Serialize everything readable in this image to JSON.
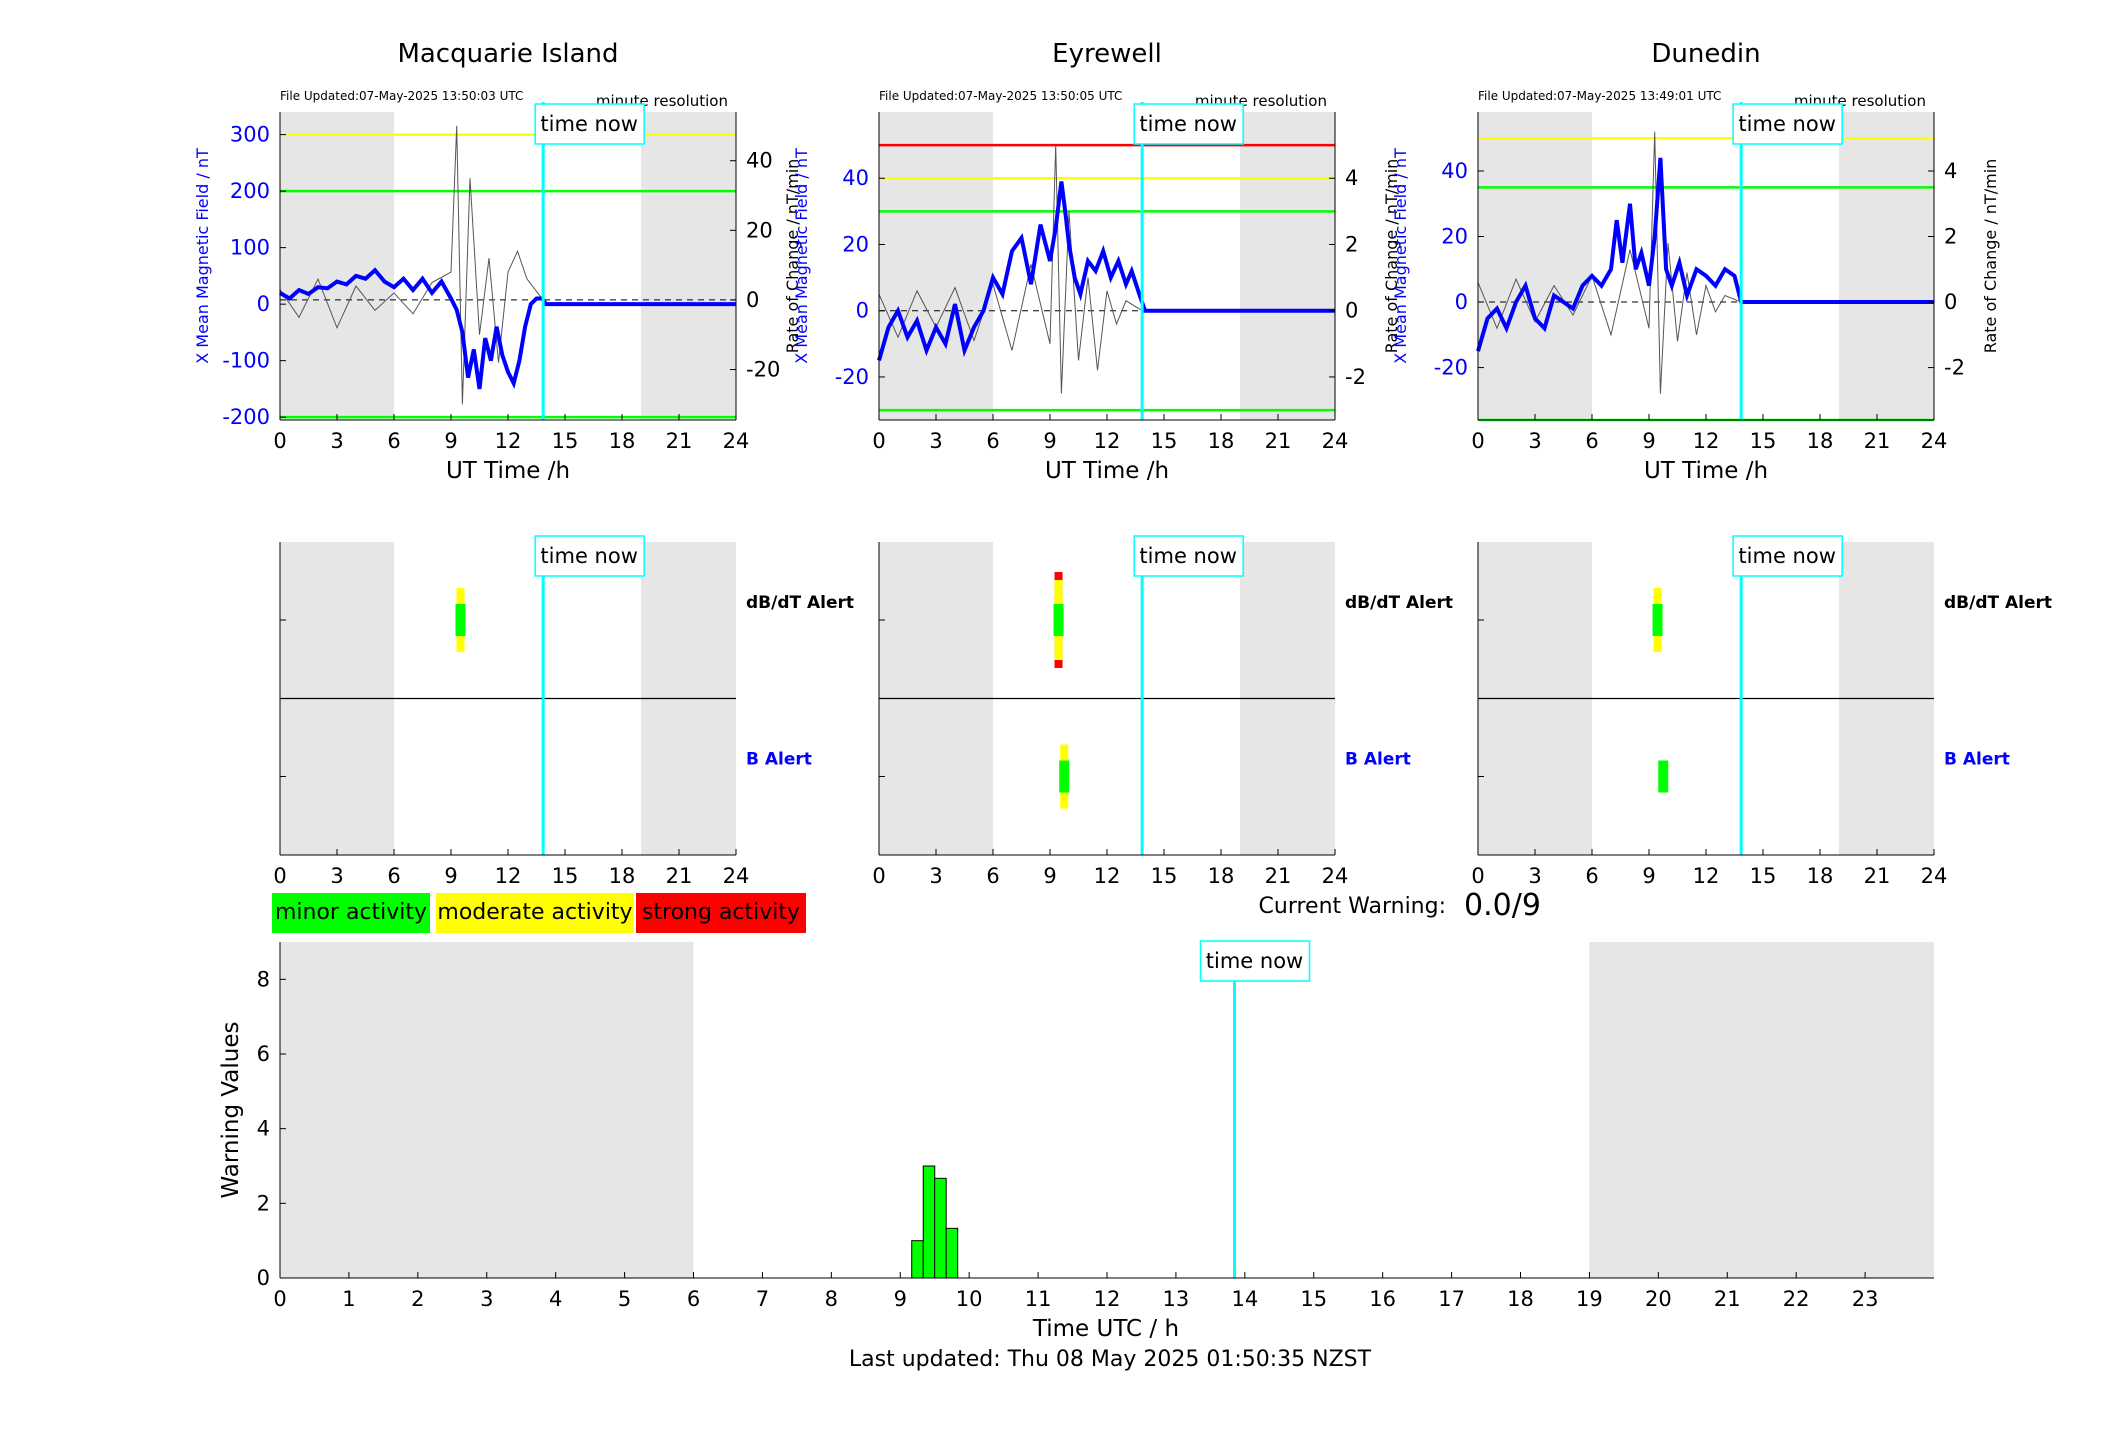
{
  "figure": {
    "last_updated": "Last updated: Thu 08 May 2025 01:50:35 NZST",
    "current_warning_label": "Current Warning:",
    "current_warning_value": "0.0/9",
    "time_now_label": "time now"
  },
  "legend": [
    {
      "label": "minor activity",
      "color": "#00ff00"
    },
    {
      "label": "moderate activity",
      "color": "#ffff00"
    },
    {
      "label": "strong activity",
      "color": "#ff0000"
    }
  ],
  "colors": {
    "field_line": "#0000ff",
    "rate_line": "#555555",
    "now_line": "#00ffff",
    "night_shade": "#e6e6e6",
    "minor": "#00ff00",
    "moderate": "#ffff00",
    "strong": "#ff0000"
  },
  "alert_labels": {
    "dbdt": "dB/dT Alert",
    "b": "B Alert"
  },
  "chart_data": [
    {
      "type": "line",
      "title": "Macquarie Island",
      "file_updated": "File Updated:07-May-2025 13:50:03 UTC",
      "resolution": "minute resolution",
      "xlabel": "UT Time /h",
      "ylabel_left": "X Mean Magnetic Field / nT",
      "ylabel_right": "Rate of Change / nT/min",
      "xlim": [
        0,
        24
      ],
      "xticks": [
        0,
        3,
        6,
        9,
        12,
        15,
        18,
        21,
        24
      ],
      "ylim_left": [
        -205,
        340
      ],
      "yticks_left": [
        -200,
        -100,
        0,
        100,
        200,
        300
      ],
      "ylim_right": [
        -34.5,
        54
      ],
      "yticks_right": [
        -20,
        0,
        20,
        40
      ],
      "night_shading_hours": [
        [
          0,
          6
        ],
        [
          19,
          24
        ]
      ],
      "time_now_hour": 13.85,
      "threshold_lines": [
        {
          "value": 300,
          "color": "yellow"
        },
        {
          "value": 200,
          "color": "green"
        },
        {
          "value": -200,
          "color": "green"
        }
      ],
      "field_series": {
        "name": "X Mean Magnetic Field",
        "x": [
          0,
          0.5,
          1,
          1.5,
          2,
          2.5,
          3,
          3.5,
          4,
          4.5,
          5,
          5.5,
          6,
          6.5,
          7,
          7.5,
          8,
          8.5,
          9,
          9.3,
          9.6,
          9.9,
          10.2,
          10.5,
          10.8,
          11.1,
          11.4,
          11.7,
          12,
          12.3,
          12.6,
          12.9,
          13.2,
          13.5,
          13.8,
          14,
          24
        ],
        "y": [
          20,
          10,
          25,
          18,
          30,
          28,
          40,
          35,
          50,
          45,
          60,
          40,
          30,
          45,
          25,
          45,
          20,
          40,
          10,
          -10,
          -50,
          -130,
          -80,
          -150,
          -60,
          -100,
          -40,
          -90,
          -120,
          -140,
          -100,
          -40,
          0,
          10,
          10,
          0,
          0
        ]
      },
      "rate_series": {
        "name": "Rate of Change",
        "x": [
          0,
          1,
          2,
          3,
          4,
          5,
          6,
          7,
          8,
          9,
          9.3,
          9.6,
          10,
          10.5,
          11,
          11.5,
          12,
          12.5,
          13,
          13.85
        ],
        "y": [
          3,
          -5,
          6,
          -8,
          4,
          -3,
          2,
          -4,
          5,
          8,
          50,
          -30,
          35,
          -10,
          12,
          -18,
          8,
          14,
          6,
          0
        ]
      },
      "alerts": {
        "dbdt": [
          {
            "start": 9.2,
            "end": 9.8,
            "level": "moderate"
          },
          {
            "start": 9.3,
            "end": 9.7,
            "level": "minor"
          }
        ],
        "b": []
      }
    },
    {
      "type": "line",
      "title": "Eyrewell",
      "file_updated": "File Updated:07-May-2025 13:50:05 UTC",
      "resolution": "minute resolution",
      "xlabel": "UT Time /h",
      "ylabel_left": "X Mean Magnetic Field / nT",
      "ylabel_right": "Rate of Change / nT/min",
      "xlim": [
        0,
        24
      ],
      "xticks": [
        0,
        3,
        6,
        9,
        12,
        15,
        18,
        21,
        24
      ],
      "ylim_left": [
        -33,
        60
      ],
      "yticks_left": [
        -20,
        0,
        20,
        40
      ],
      "ylim_right": [
        -3.3,
        6
      ],
      "yticks_right": [
        -2,
        0,
        2,
        4
      ],
      "night_shading_hours": [
        [
          0,
          6
        ],
        [
          19,
          24
        ]
      ],
      "time_now_hour": 13.85,
      "threshold_lines": [
        {
          "value": 50,
          "color": "red"
        },
        {
          "value": 40,
          "color": "yellow"
        },
        {
          "value": 30,
          "color": "green"
        },
        {
          "value": -30,
          "color": "green"
        }
      ],
      "field_series": {
        "name": "X Mean Magnetic Field",
        "x": [
          0,
          0.5,
          1,
          1.5,
          2,
          2.5,
          3,
          3.5,
          4,
          4.5,
          5,
          5.5,
          6,
          6.5,
          7,
          7.5,
          8,
          8.5,
          9,
          9.3,
          9.6,
          9.8,
          10,
          10.3,
          10.6,
          11,
          11.4,
          11.8,
          12.2,
          12.6,
          13,
          13.3,
          13.7,
          14,
          24
        ],
        "y": [
          -15,
          -5,
          0,
          -8,
          -3,
          -12,
          -5,
          -10,
          2,
          -12,
          -5,
          0,
          10,
          5,
          18,
          22,
          8,
          26,
          15,
          25,
          39,
          30,
          20,
          10,
          5,
          15,
          12,
          18,
          10,
          15,
          8,
          12,
          5,
          0,
          0
        ]
      },
      "rate_series": {
        "name": "Rate of Change",
        "x": [
          0,
          1,
          2,
          3,
          4,
          5,
          6,
          7,
          8,
          9,
          9.3,
          9.6,
          10,
          10.5,
          11,
          11.5,
          12,
          12.5,
          13,
          13.85
        ],
        "y": [
          0.5,
          -0.8,
          0.6,
          -0.5,
          0.7,
          -0.9,
          0.8,
          -1.2,
          1.4,
          -1.0,
          5.0,
          -2.5,
          3.0,
          -1.5,
          1.0,
          -1.8,
          0.6,
          -0.4,
          0.3,
          0
        ]
      },
      "alerts": {
        "dbdt": [
          {
            "start": 9.2,
            "end": 9.7,
            "level": "strong"
          },
          {
            "start": 9.2,
            "end": 9.7,
            "level": "moderate"
          },
          {
            "start": 9.25,
            "end": 9.65,
            "level": "minor"
          }
        ],
        "b": [
          {
            "start": 9.5,
            "end": 10.0,
            "level": "moderate"
          },
          {
            "start": 9.55,
            "end": 9.95,
            "level": "minor"
          }
        ]
      }
    },
    {
      "type": "line",
      "title": "Dunedin",
      "file_updated": "File Updated:07-May-2025 13:49:01 UTC",
      "resolution": "minute resolution",
      "xlabel": "UT Time /h",
      "ylabel_left": "X Mean Magnetic Field / nT",
      "ylabel_right": "Rate of Change / nT/min",
      "xlim": [
        0,
        24
      ],
      "xticks": [
        0,
        3,
        6,
        9,
        12,
        15,
        18,
        21,
        24
      ],
      "ylim_left": [
        -36,
        58
      ],
      "yticks_left": [
        -20,
        0,
        20,
        40
      ],
      "ylim_right": [
        -3.6,
        5.8
      ],
      "yticks_right": [
        -2,
        0,
        2,
        4
      ],
      "night_shading_hours": [
        [
          0,
          6
        ],
        [
          19,
          24
        ]
      ],
      "time_now_hour": 13.85,
      "threshold_lines": [
        {
          "value": 50,
          "color": "yellow"
        },
        {
          "value": 35,
          "color": "green"
        },
        {
          "value": -36,
          "color": "green"
        }
      ],
      "field_series": {
        "name": "X Mean Magnetic Field",
        "x": [
          0,
          0.5,
          1,
          1.5,
          2,
          2.5,
          3,
          3.5,
          4,
          4.5,
          5,
          5.5,
          6,
          6.5,
          7,
          7.3,
          7.6,
          8,
          8.3,
          8.6,
          9,
          9.3,
          9.6,
          9.9,
          10.2,
          10.6,
          11,
          11.5,
          12,
          12.5,
          13,
          13.5,
          13.85,
          24
        ],
        "y": [
          -15,
          -5,
          -2,
          -8,
          0,
          5,
          -5,
          -8,
          2,
          0,
          -2,
          5,
          8,
          5,
          10,
          25,
          12,
          30,
          10,
          15,
          5,
          20,
          44,
          10,
          5,
          12,
          2,
          10,
          8,
          5,
          10,
          8,
          0,
          0
        ]
      },
      "rate_series": {
        "name": "Rate of Change",
        "x": [
          0,
          1,
          2,
          3,
          4,
          5,
          6,
          7,
          8,
          9,
          9.3,
          9.6,
          10,
          10.5,
          11,
          11.5,
          12,
          12.5,
          13,
          13.85
        ],
        "y": [
          0.6,
          -0.8,
          0.7,
          -0.6,
          0.5,
          -0.4,
          0.8,
          -1.0,
          1.6,
          -0.8,
          5.2,
          -2.8,
          1.8,
          -1.2,
          0.9,
          -1.0,
          0.5,
          -0.3,
          0.2,
          0
        ]
      },
      "alerts": {
        "dbdt": [
          {
            "start": 9.2,
            "end": 9.7,
            "level": "moderate"
          },
          {
            "start": 9.25,
            "end": 9.65,
            "level": "minor"
          }
        ],
        "b": [
          {
            "start": 9.5,
            "end": 10.0,
            "level": "minor"
          }
        ]
      }
    },
    {
      "type": "bar",
      "xlabel": "Time UTC / h",
      "ylabel": "Warning Values",
      "xlim": [
        0,
        24
      ],
      "xticks": [
        0,
        1,
        2,
        3,
        4,
        5,
        6,
        7,
        8,
        9,
        10,
        11,
        12,
        13,
        14,
        15,
        16,
        17,
        18,
        19,
        20,
        21,
        22,
        23
      ],
      "ylim": [
        0,
        9
      ],
      "yticks": [
        0,
        2,
        4,
        6,
        8
      ],
      "night_shading_hours": [
        [
          0,
          6
        ],
        [
          19,
          24
        ]
      ],
      "time_now_hour": 13.85,
      "bar_width_hours": 0.167,
      "x": [
        9.25,
        9.417,
        9.583,
        9.75
      ],
      "values": [
        1,
        3,
        2.67,
        1.33
      ]
    }
  ]
}
